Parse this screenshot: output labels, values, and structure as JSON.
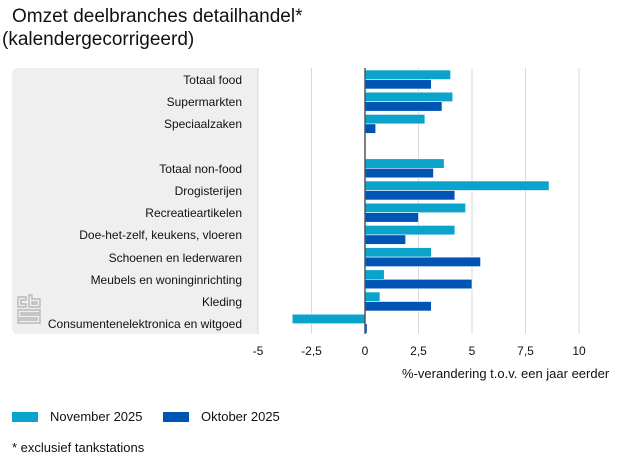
{
  "title": "Omzet deelbranches detailhandel*",
  "subtitle": "(kalendergecorrigeerd)",
  "footnote": "* exclusief tankstations",
  "colors": {
    "november": "#0aa3cc",
    "oktober": "#0054b4",
    "panel": "#efefef",
    "grid": "#d9d9d9",
    "axis": "#555555"
  },
  "legend": [
    {
      "label": "November 2025",
      "color": "#0aa3cc"
    },
    {
      "label": "Oktober 2025",
      "color": "#0054b4"
    }
  ],
  "chart_data": {
    "type": "bar",
    "orientation": "horizontal",
    "title": "Omzet deelbranches detailhandel* (kalendergecorrigeerd)",
    "xlabel": "%-verandering t.o.v. een jaar eerder",
    "ylabel": "",
    "xlim": [
      -5,
      10
    ],
    "xticks": [
      -5,
      -2.5,
      0,
      2.5,
      5,
      7.5,
      10
    ],
    "xtick_labels": [
      "-5",
      "-2,5",
      "0",
      "2,5",
      "5",
      "7,5",
      "10"
    ],
    "grid": true,
    "legend_position": "bottom-left",
    "categories": [
      "Totaal food",
      "Supermarkten",
      "Speciaalzaken",
      "",
      "Totaal non-food",
      "Drogisterijen",
      "Recreatieartikelen",
      "Doe-het-zelf, keukens, vloeren",
      "Schoenen en lederwaren",
      "Meubels en woninginrichting",
      "Kleding",
      "Consumentenelektronica en witgoed"
    ],
    "series": [
      {
        "name": "November 2025",
        "color": "#0aa3cc",
        "values": [
          4.0,
          4.1,
          2.8,
          null,
          3.7,
          8.6,
          4.7,
          4.2,
          3.1,
          0.9,
          0.7,
          -3.4
        ]
      },
      {
        "name": "Oktober 2025",
        "color": "#0054b4",
        "values": [
          3.1,
          3.6,
          0.5,
          null,
          3.2,
          4.2,
          2.5,
          1.9,
          5.4,
          5.0,
          3.1,
          0.1
        ]
      }
    ]
  }
}
